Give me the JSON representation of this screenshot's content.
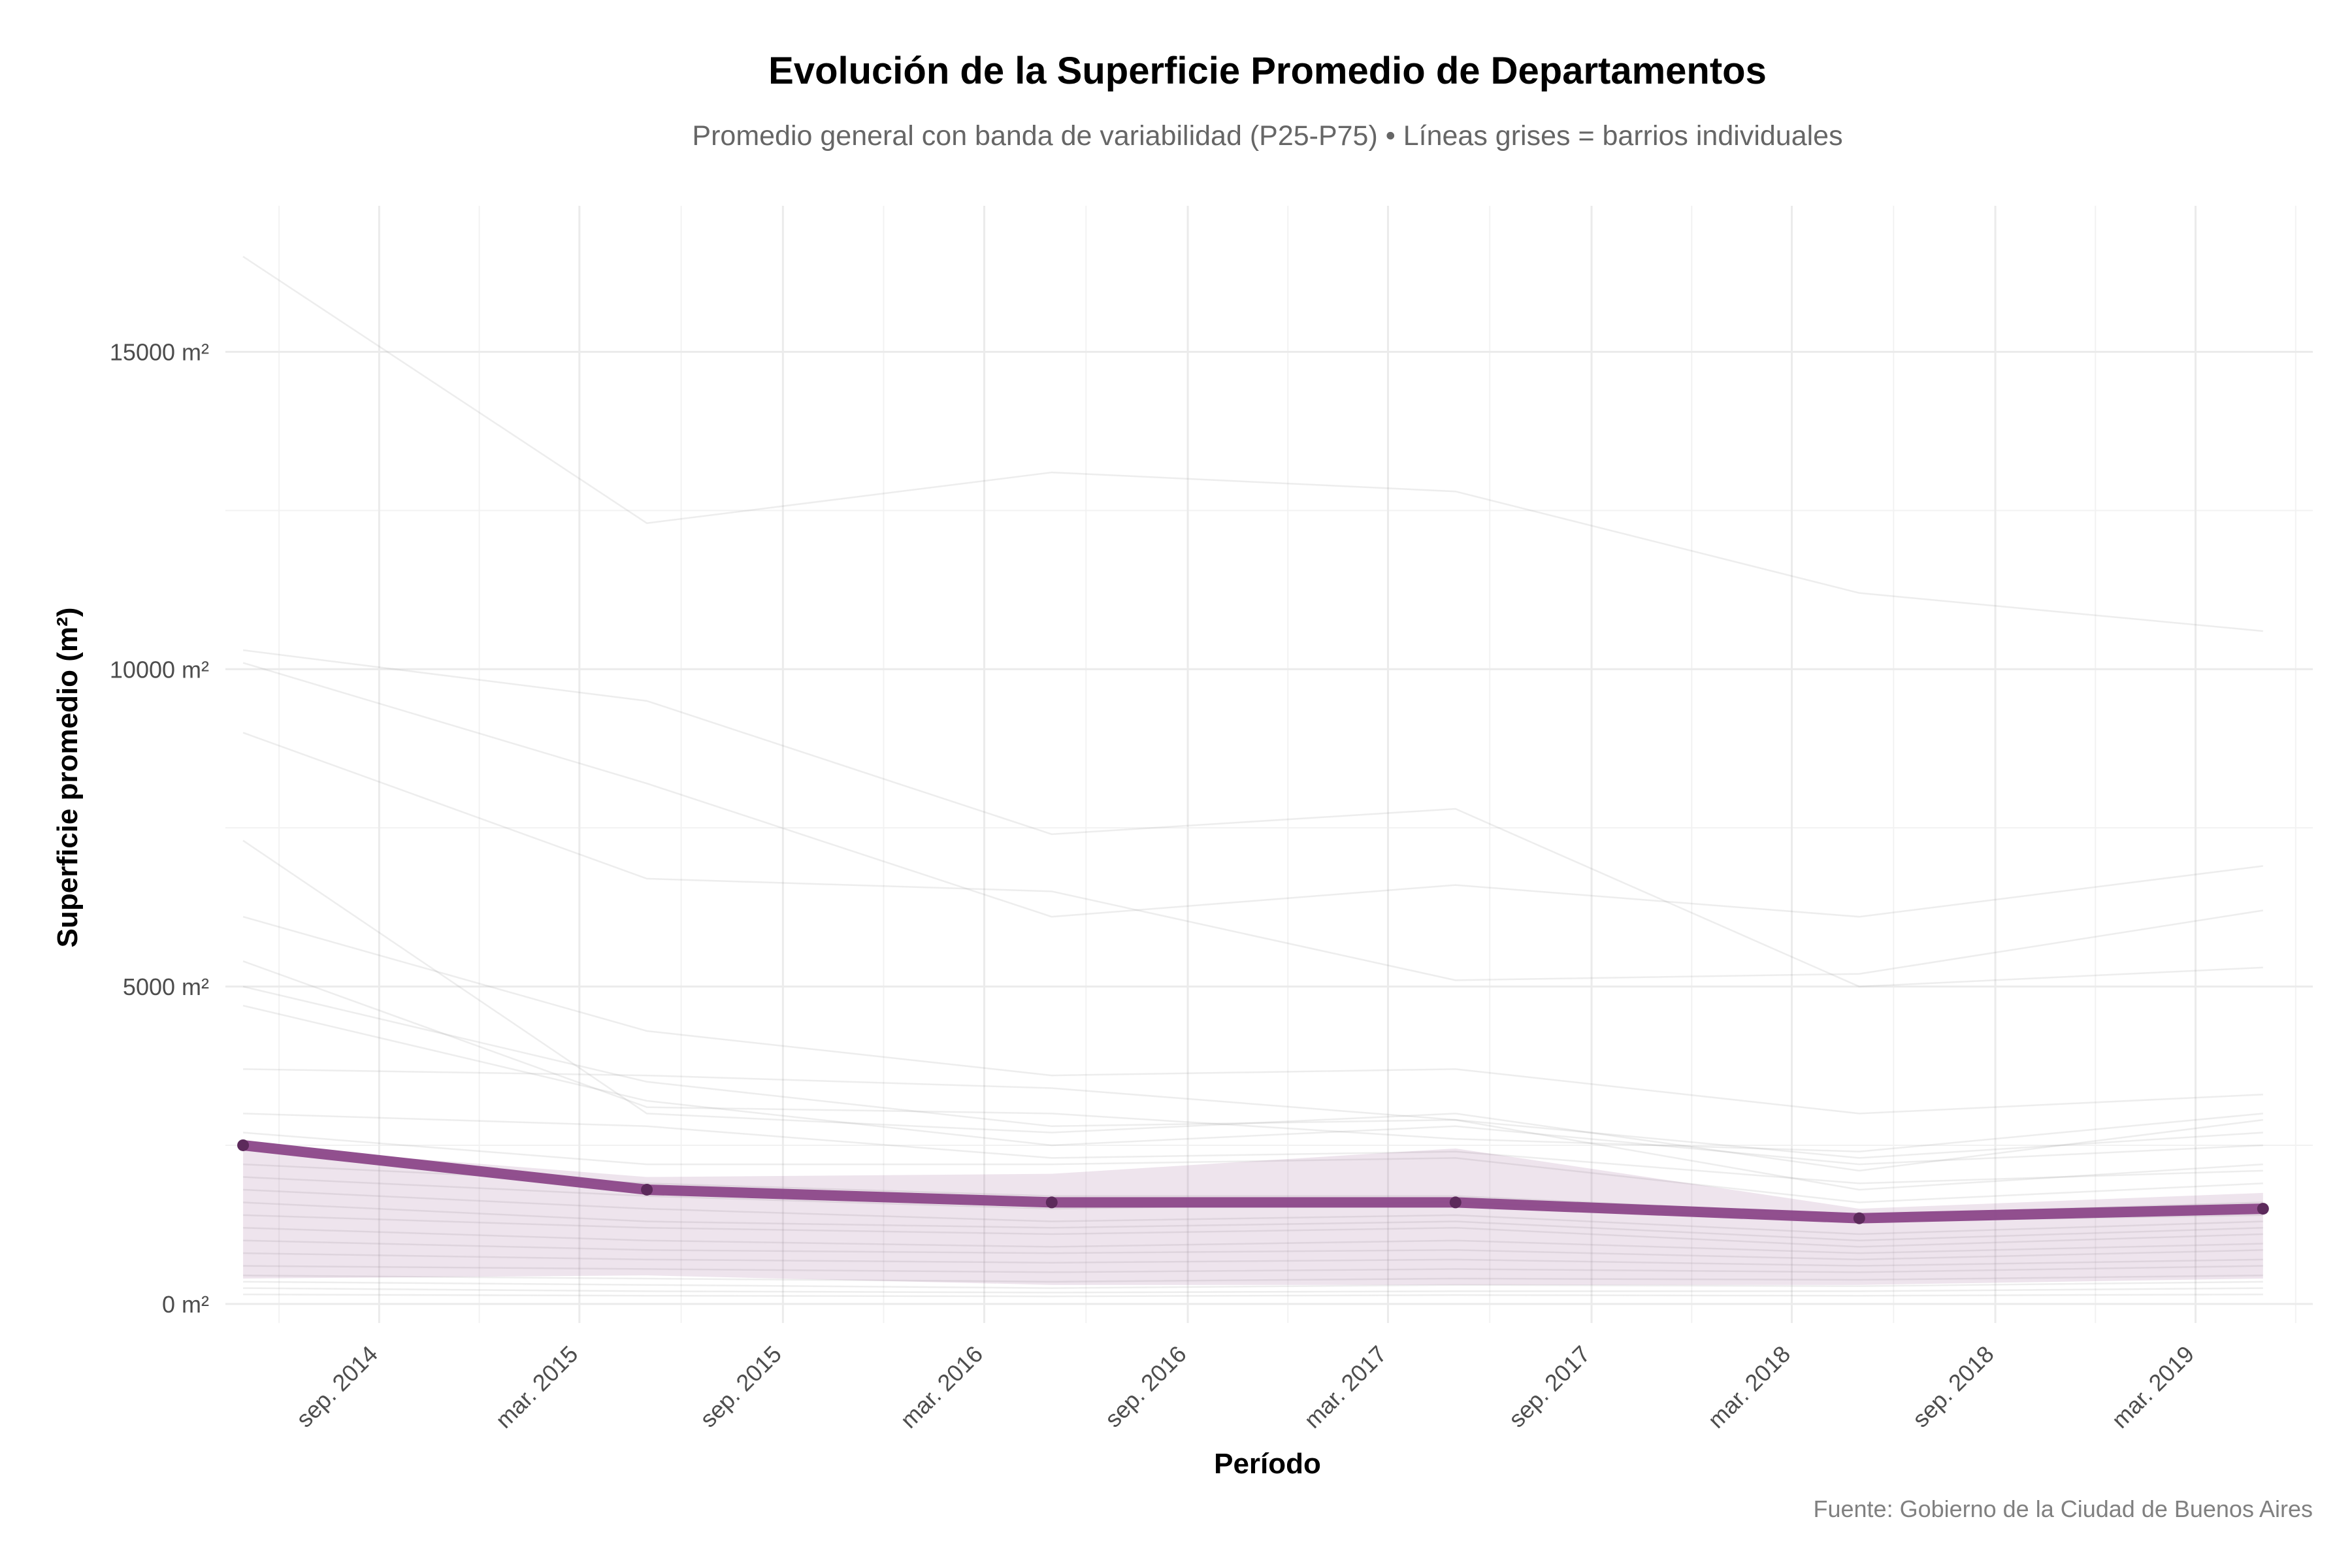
{
  "chart_data": {
    "type": "line",
    "title": "Evolución de la Superficie Promedio de Departamentos",
    "subtitle": "Promedio general con banda de variabilidad (P25-P75) • Líneas grises = barrios individuales",
    "xlabel": "Período",
    "ylabel": "Superficie promedio (m²)",
    "caption": "Fuente: Gobierno de la Ciudad de Buenos Aires",
    "x_tick_labels": [
      "sep. 2014",
      "mar. 2015",
      "sep. 2015",
      "mar. 2016",
      "sep. 2016",
      "mar. 2017",
      "sep. 2017",
      "mar. 2018",
      "sep. 2018",
      "mar. 2019"
    ],
    "x_tick_dates": [
      "2014-09-01",
      "2015-03-01",
      "2015-09-01",
      "2016-03-01",
      "2016-09-01",
      "2017-03-01",
      "2017-09-01",
      "2018-03-01",
      "2018-09-01",
      "2019-03-01"
    ],
    "xlim": [
      "2014-04-15",
      "2019-06-15"
    ],
    "y_ticks": [
      0,
      5000,
      10000,
      15000
    ],
    "y_tick_labels": [
      "0 m²",
      "5000 m²",
      "10000 m²",
      "15000 m²"
    ],
    "ylim": [
      -300,
      17300
    ],
    "x": [
      "2014-05-01",
      "2015-05-01",
      "2016-05-01",
      "2017-05-01",
      "2018-05-01",
      "2019-05-01"
    ],
    "series": [
      {
        "name": "",
        "role": "promedio",
        "color": "#8B4789",
        "values": [
          2500,
          1800,
          1600,
          1600,
          1350,
          1500
        ]
      }
    ],
    "band": {
      "role": "P25-P75",
      "color": "#8B4789",
      "lower": [
        400,
        450,
        300,
        300,
        300,
        400
      ],
      "upper": [
        2500,
        2000,
        2050,
        2450,
        1500,
        1750
      ]
    },
    "neighborhood_lines": {
      "color": "#999999",
      "values": [
        [
          16500,
          12300,
          13100,
          12800,
          11200,
          10600
        ],
        [
          10300,
          9500,
          7400,
          7800,
          5000,
          5300
        ],
        [
          10100,
          8200,
          6100,
          6600,
          6100,
          6900
        ],
        [
          9000,
          6700,
          6500,
          5100,
          5200,
          6200
        ],
        [
          7300,
          3000,
          2700,
          3000,
          2100,
          2900
        ],
        [
          6100,
          4300,
          3600,
          3700,
          3000,
          3300
        ],
        [
          5400,
          3100,
          3000,
          2600,
          2400,
          3000
        ],
        [
          5000,
          3500,
          2800,
          2900,
          2300,
          2700
        ],
        [
          4700,
          3200,
          2500,
          2800,
          2200,
          2500
        ],
        [
          3700,
          3600,
          3400,
          2900,
          1800,
          2200
        ],
        [
          3000,
          2800,
          2300,
          2400,
          1900,
          2100
        ],
        [
          2700,
          2200,
          2200,
          2300,
          1600,
          1900
        ],
        [
          2200,
          1900,
          1700,
          1700,
          1400,
          1600
        ],
        [
          2000,
          1700,
          1500,
          1600,
          1300,
          1400
        ],
        [
          1800,
          1500,
          1300,
          1400,
          1100,
          1300
        ],
        [
          1600,
          1300,
          1200,
          1300,
          1000,
          1200
        ],
        [
          1400,
          1200,
          1100,
          1200,
          900,
          1100
        ],
        [
          1200,
          1000,
          900,
          1000,
          800,
          950
        ],
        [
          1000,
          850,
          800,
          850,
          700,
          850
        ],
        [
          800,
          700,
          650,
          700,
          600,
          700
        ],
        [
          600,
          550,
          500,
          550,
          500,
          600
        ],
        [
          450,
          400,
          350,
          400,
          380,
          450
        ],
        [
          350,
          300,
          250,
          300,
          280,
          350
        ],
        [
          250,
          200,
          180,
          200,
          200,
          250
        ],
        [
          150,
          130,
          120,
          140,
          130,
          150
        ]
      ]
    },
    "grid": true,
    "legend": "none"
  }
}
